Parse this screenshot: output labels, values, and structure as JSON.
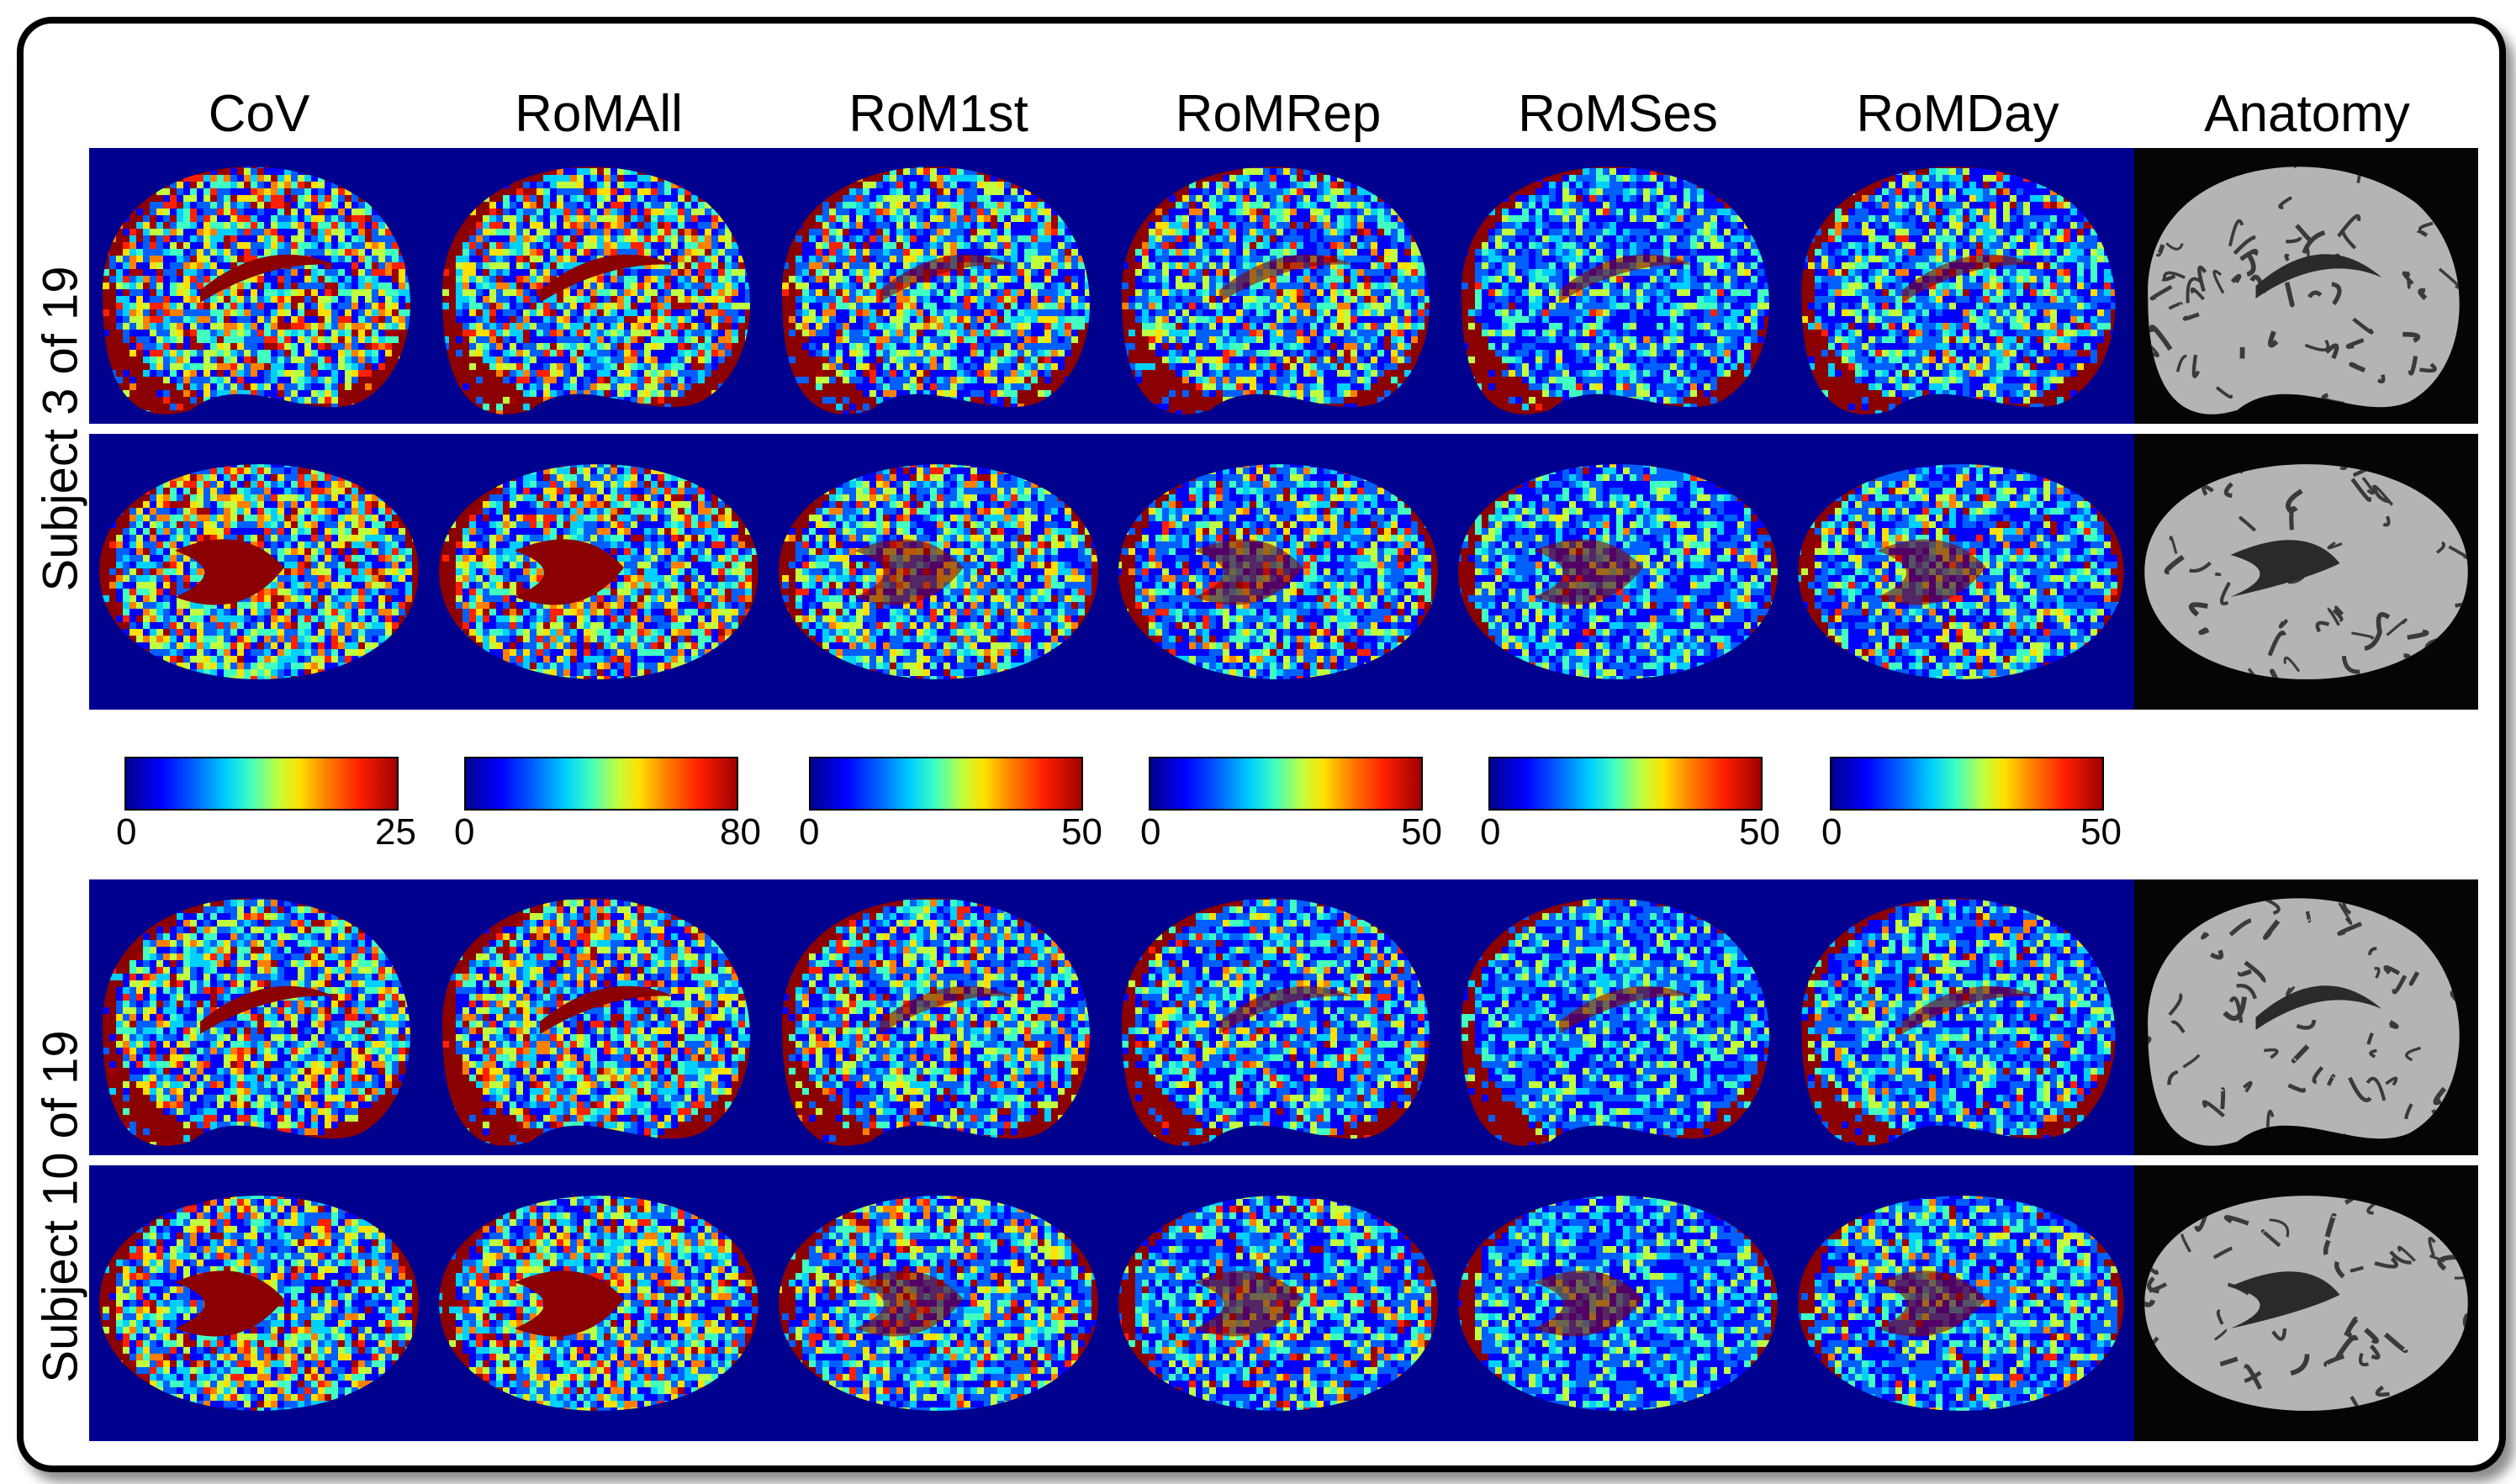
{
  "columns": [
    {
      "title": "CoV",
      "kind": "map",
      "colorbar": {
        "min": "0",
        "max": "25"
      }
    },
    {
      "title": "RoMAll",
      "kind": "map",
      "colorbar": {
        "min": "0",
        "max": "80"
      }
    },
    {
      "title": "RoM1st",
      "kind": "map",
      "colorbar": {
        "min": "0",
        "max": "50"
      }
    },
    {
      "title": "RoMRep",
      "kind": "map",
      "colorbar": {
        "min": "0",
        "max": "50"
      }
    },
    {
      "title": "RoMSes",
      "kind": "map",
      "colorbar": {
        "min": "0",
        "max": "50"
      }
    },
    {
      "title": "RoMDay",
      "kind": "map",
      "colorbar": {
        "min": "0",
        "max": "50"
      }
    },
    {
      "title": "Anatomy",
      "kind": "anatomy"
    }
  ],
  "subjects": [
    {
      "label": "Subject 3 of 19",
      "views": [
        "sagittal",
        "axial"
      ]
    },
    {
      "label": "Subject 10 of 19",
      "views": [
        "sagittal",
        "axial"
      ]
    }
  ],
  "colormap": {
    "name": "jet",
    "background": "#00008f",
    "stops": [
      "#00008f",
      "#0000ff",
      "#0060ff",
      "#00d0ff",
      "#40ffc0",
      "#c0ff40",
      "#ffe000",
      "#ff8000",
      "#ff2000",
      "#a00000"
    ]
  }
}
